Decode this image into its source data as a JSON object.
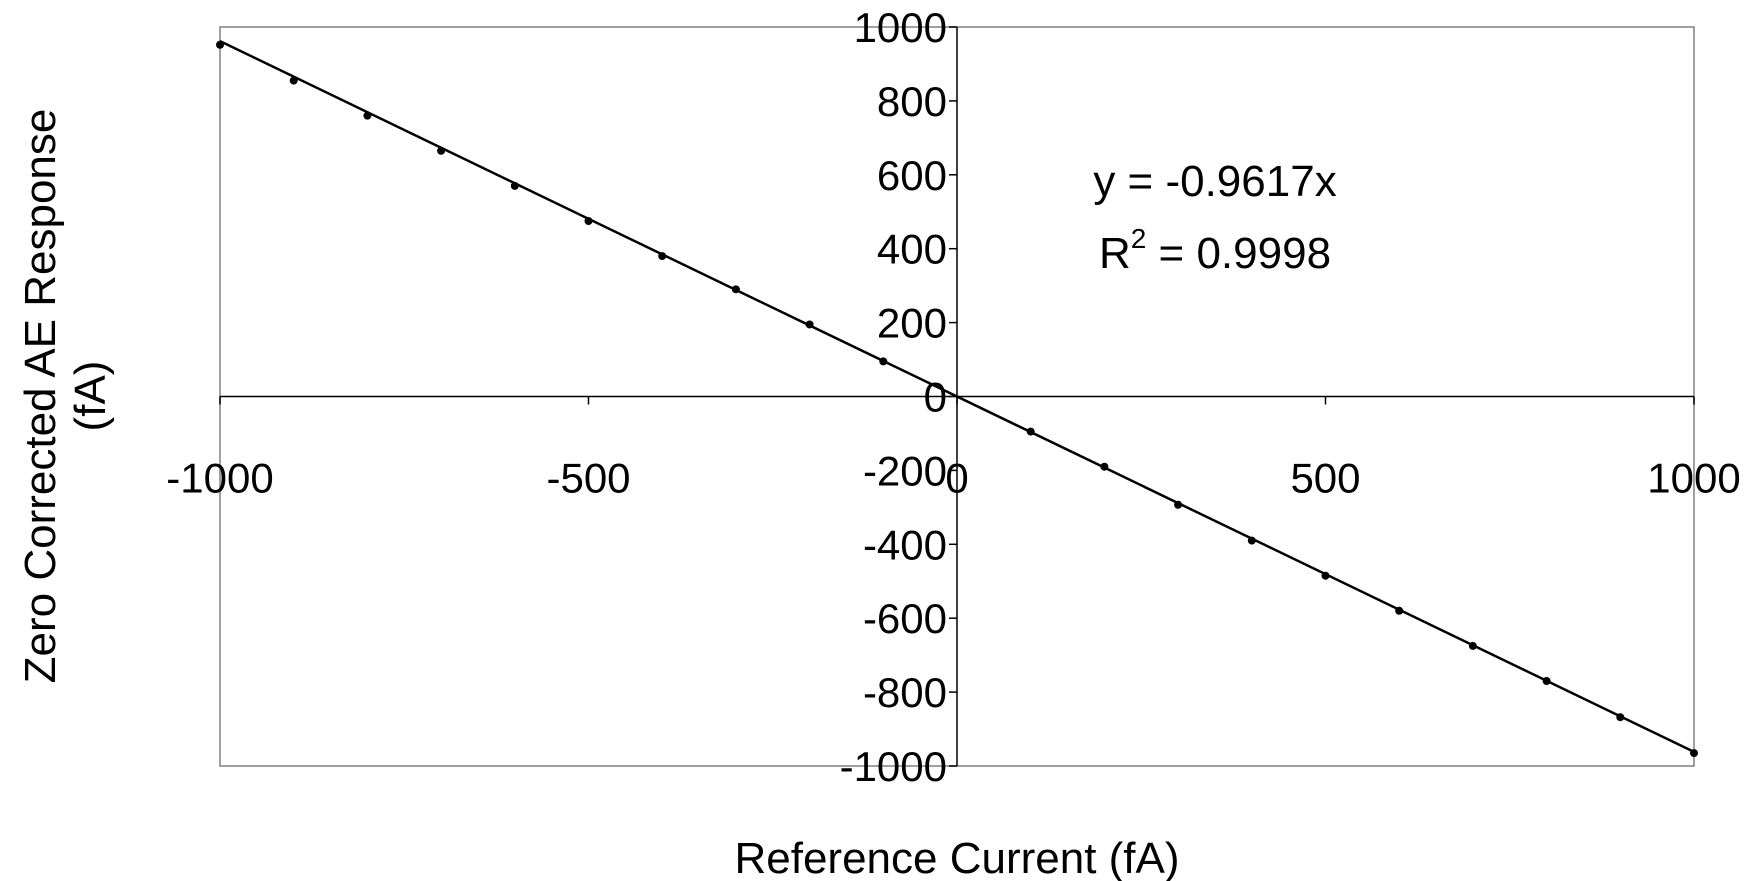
{
  "chart_data": {
    "type": "scatter",
    "title": "",
    "xlabel": "Reference Current (fA)",
    "ylabel_line1": "Zero Corrected AE Response",
    "ylabel_line2": "(fA)",
    "xlim": [
      -1000,
      1000
    ],
    "ylim": [
      -1000,
      1000
    ],
    "x_ticks": [
      -1000,
      -500,
      0,
      500,
      1000
    ],
    "x_tick_labels": [
      "-1000",
      "-500",
      "0",
      "500",
      "1000"
    ],
    "y_ticks": [
      -1000,
      -800,
      -600,
      -400,
      -200,
      0,
      200,
      400,
      600,
      800,
      1000
    ],
    "y_tick_labels": [
      "-1000",
      "-800",
      "-600",
      "-400",
      "-200",
      "0",
      "200",
      "400",
      "600",
      "800",
      "1000"
    ],
    "grid": false,
    "series": [
      {
        "x": [
          -1000,
          -900,
          -800,
          -700,
          -600,
          -500,
          -400,
          -300,
          -200,
          -100,
          100,
          200,
          300,
          400,
          500,
          600,
          700,
          800,
          900,
          1000
        ],
        "y": [
          952,
          855,
          760,
          665,
          570,
          475,
          380,
          290,
          195,
          95,
          -95,
          -190,
          -293,
          -390,
          -485,
          -580,
          -675,
          -770,
          -868,
          -965
        ]
      }
    ],
    "trendline": {
      "slope": -0.9617,
      "intercept": 0
    },
    "annotation": {
      "equation": "y = -0.9617x",
      "r_prefix": "R",
      "r_sup": "2",
      "r_suffix": " = 0.9998"
    }
  }
}
